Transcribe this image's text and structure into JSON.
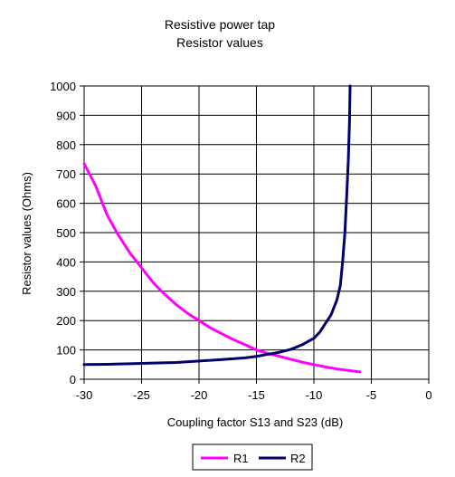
{
  "chart_data": {
    "type": "line",
    "title": "Resistive power tap",
    "subtitle": "Resistor values",
    "xlabel": "Coupling factor S13 and S23 (dB)",
    "ylabel": "Resistor values (Ohms)",
    "xlim": [
      -30,
      0
    ],
    "ylim": [
      0,
      1000
    ],
    "x_ticks": [
      -30,
      -25,
      -20,
      -15,
      -10,
      -5,
      0
    ],
    "y_ticks": [
      0,
      100,
      200,
      300,
      400,
      500,
      600,
      700,
      800,
      900,
      1000
    ],
    "x_tick_labels": [
      "-30",
      "-25",
      "-20",
      "-15",
      "-10",
      "-5",
      "0"
    ],
    "y_tick_labels": [
      "0",
      "100",
      "200",
      "300",
      "400",
      "500",
      "600",
      "700",
      "800",
      "900",
      "1000"
    ],
    "grid": true,
    "legend_position": "bottom",
    "series": [
      {
        "name": "R1",
        "color": "#ff00ff",
        "points": [
          [
            -30,
            735
          ],
          [
            -29,
            660
          ],
          [
            -28,
            560
          ],
          [
            -27,
            490
          ],
          [
            -26,
            430
          ],
          [
            -25,
            380
          ],
          [
            -24,
            330
          ],
          [
            -23,
            290
          ],
          [
            -22,
            255
          ],
          [
            -21,
            225
          ],
          [
            -20,
            200
          ],
          [
            -19,
            175
          ],
          [
            -18,
            155
          ],
          [
            -17,
            135
          ],
          [
            -16,
            118
          ],
          [
            -15,
            100
          ],
          [
            -14,
            88
          ],
          [
            -13,
            78
          ],
          [
            -12,
            68
          ],
          [
            -11,
            58
          ],
          [
            -10,
            50
          ],
          [
            -9,
            42
          ],
          [
            -8,
            35
          ],
          [
            -7,
            30
          ],
          [
            -6,
            25
          ]
        ]
      },
      {
        "name": "R2",
        "color": "#00006e",
        "points": [
          [
            -30,
            50
          ],
          [
            -28,
            51
          ],
          [
            -26,
            53
          ],
          [
            -24,
            55
          ],
          [
            -22,
            57
          ],
          [
            -20,
            62
          ],
          [
            -18,
            67
          ],
          [
            -16,
            73
          ],
          [
            -15,
            78
          ],
          [
            -14,
            85
          ],
          [
            -13,
            92
          ],
          [
            -12,
            102
          ],
          [
            -11,
            118
          ],
          [
            -10,
            140
          ],
          [
            -9.5,
            160
          ],
          [
            -9,
            190
          ],
          [
            -8.5,
            220
          ],
          [
            -8,
            270
          ],
          [
            -7.7,
            320
          ],
          [
            -7.5,
            400
          ],
          [
            -7.3,
            500
          ],
          [
            -7.15,
            620
          ],
          [
            -7.0,
            750
          ],
          [
            -6.9,
            880
          ],
          [
            -6.85,
            1000
          ]
        ]
      }
    ]
  }
}
